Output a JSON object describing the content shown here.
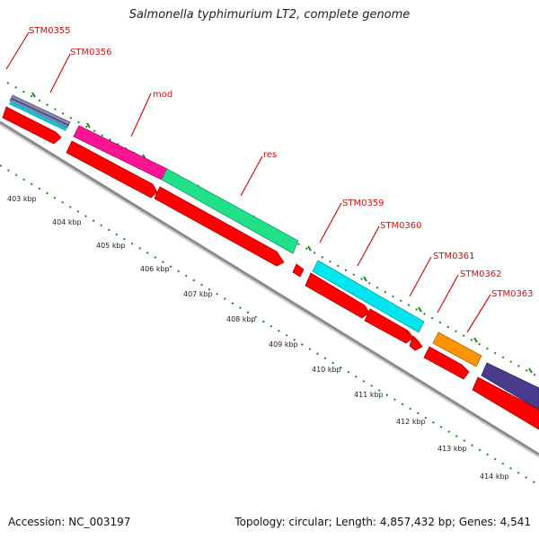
{
  "title": "Salmonella typhimurium LT2, complete genome",
  "footer": {
    "accession": "Accession: NC_003197",
    "topology": "Topology: circular; Length: 4,857,432 bp; Genes: 4,541"
  },
  "colors": {
    "cds": "#ff0000",
    "backbone": "#8a8a8a",
    "tick": "#1a8a1a",
    "label": "#d01010"
  },
  "genes": [
    {
      "label": "STM0355",
      "color": "#8a8aa8",
      "strand": "top"
    },
    {
      "label": "STM0356",
      "color": "#22bbcc",
      "strand": "top"
    },
    {
      "label": "mod",
      "color": "#ff1493",
      "strand": "top"
    },
    {
      "label": "res",
      "color": "#22e08a",
      "strand": "top"
    },
    {
      "label": "STM0359",
      "color": "#ff0000",
      "strand": "bottom"
    },
    {
      "label": "STM0360",
      "color": "#00e5ee",
      "strand": "top"
    },
    {
      "label": "STM0361",
      "color": "#ff0000",
      "strand": "bottom"
    },
    {
      "label": "STM0362",
      "color": "#ff0000",
      "strand": "bottom"
    },
    {
      "label": "STM0363",
      "color": "#ff9500",
      "strand": "top"
    }
  ],
  "ticks": [
    "403 kbp",
    "404 kbp",
    "405 kbp",
    "406 kbp",
    "407 kbp",
    "408 kbp",
    "409 kbp",
    "410 kbp",
    "411 kbp",
    "412 kbp",
    "413 kbp",
    "414 kbp"
  ]
}
